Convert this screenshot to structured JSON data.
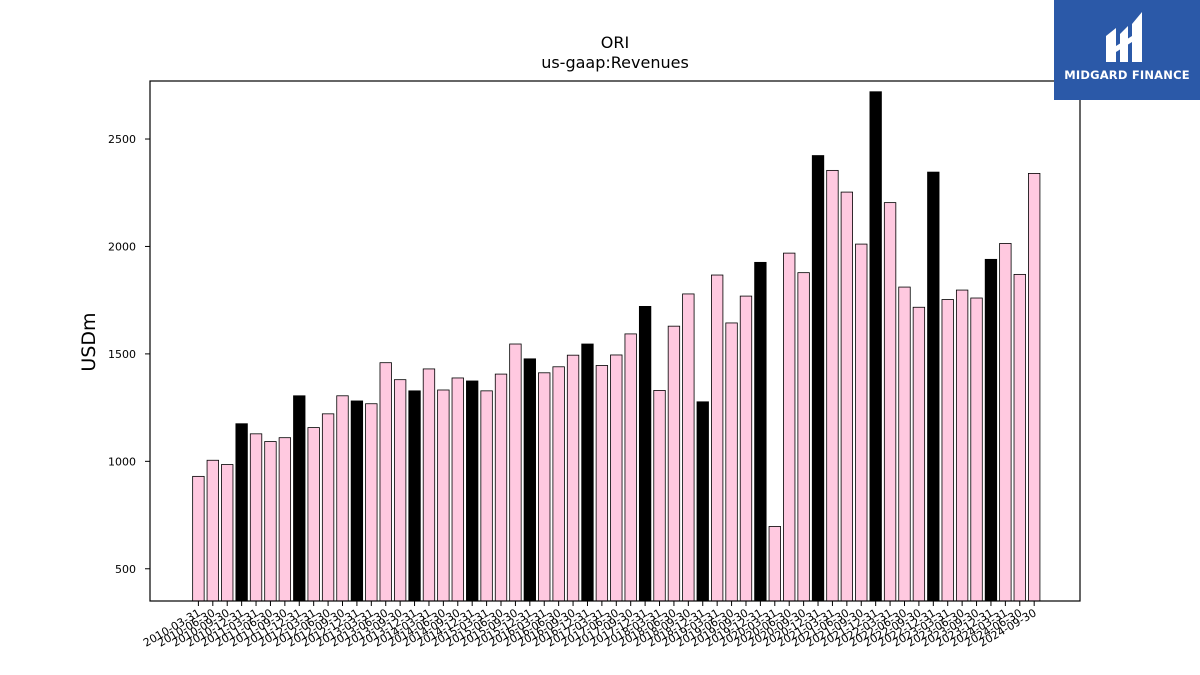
{
  "brand": {
    "name": "MIDGARD FINANCE",
    "logo_icon": "midgard-m-logo-icon",
    "background": "#2b59a8"
  },
  "chart_data": {
    "type": "bar",
    "title": "ORI",
    "subtitle": "us-gaap:Revenues",
    "xlabel": "",
    "ylabel": "USDm",
    "ylim": [
      350,
      2770
    ],
    "yticks": [
      500,
      1000,
      1500,
      2000,
      2500
    ],
    "grid": false,
    "colors": {
      "quarter": "#ffc9e0",
      "annual": "#000000",
      "edge": "#000000"
    },
    "categories": [
      "2010-03-31",
      "2010-06-30",
      "2010-09-30",
      "2010-12-31",
      "2011-03-31",
      "2011-06-30",
      "2011-09-30",
      "2011-12-31",
      "2012-03-31",
      "2012-06-30",
      "2012-09-30",
      "2012-12-31",
      "2013-03-31",
      "2013-06-30",
      "2013-09-30",
      "2013-12-31",
      "2014-03-31",
      "2014-06-30",
      "2014-09-30",
      "2014-12-31",
      "2015-03-31",
      "2015-06-30",
      "2015-09-30",
      "2015-12-31",
      "2016-03-31",
      "2016-06-30",
      "2016-09-30",
      "2016-12-31",
      "2017-03-31",
      "2017-06-30",
      "2017-09-30",
      "2017-12-31",
      "2018-03-31",
      "2018-06-30",
      "2018-09-30",
      "2018-12-31",
      "2019-03-31",
      "2019-06-30",
      "2019-09-30",
      "2019-12-31",
      "2020-03-31",
      "2020-06-30",
      "2020-09-30",
      "2020-12-31",
      "2021-03-31",
      "2021-06-30",
      "2021-09-30",
      "2021-12-31",
      "2022-03-31",
      "2022-06-30",
      "2022-09-30",
      "2022-12-31",
      "2023-03-31",
      "2023-06-30",
      "2023-09-30",
      "2023-12-31",
      "2024-03-31",
      "2024-06-30",
      "2024-09-30"
    ],
    "values": [
      930,
      1005,
      985,
      1175,
      1128,
      1092,
      1110,
      1305,
      1157,
      1221,
      1305,
      1281,
      1268,
      1459,
      1380,
      1328,
      1430,
      1332,
      1388,
      1374,
      1328,
      1406,
      1546,
      1477,
      1412,
      1440,
      1494,
      1546,
      1446,
      1495,
      1593,
      1721,
      1330,
      1629,
      1779,
      1277,
      1867,
      1644,
      1769,
      1926,
      697,
      1969,
      1878,
      2423,
      2354,
      2253,
      2011,
      2720,
      2204,
      1811,
      1717,
      2346,
      1753,
      1797,
      1760,
      1940,
      2014,
      1870,
      2340
    ],
    "annual_flags": [
      false,
      false,
      false,
      true,
      false,
      false,
      false,
      true,
      false,
      false,
      false,
      true,
      false,
      false,
      false,
      true,
      false,
      false,
      false,
      true,
      false,
      false,
      false,
      true,
      false,
      false,
      false,
      true,
      false,
      false,
      false,
      true,
      false,
      false,
      false,
      true,
      false,
      false,
      false,
      true,
      false,
      false,
      false,
      true,
      false,
      false,
      false,
      true,
      false,
      false,
      false,
      true,
      false,
      false,
      false,
      true,
      false,
      false,
      false
    ]
  }
}
